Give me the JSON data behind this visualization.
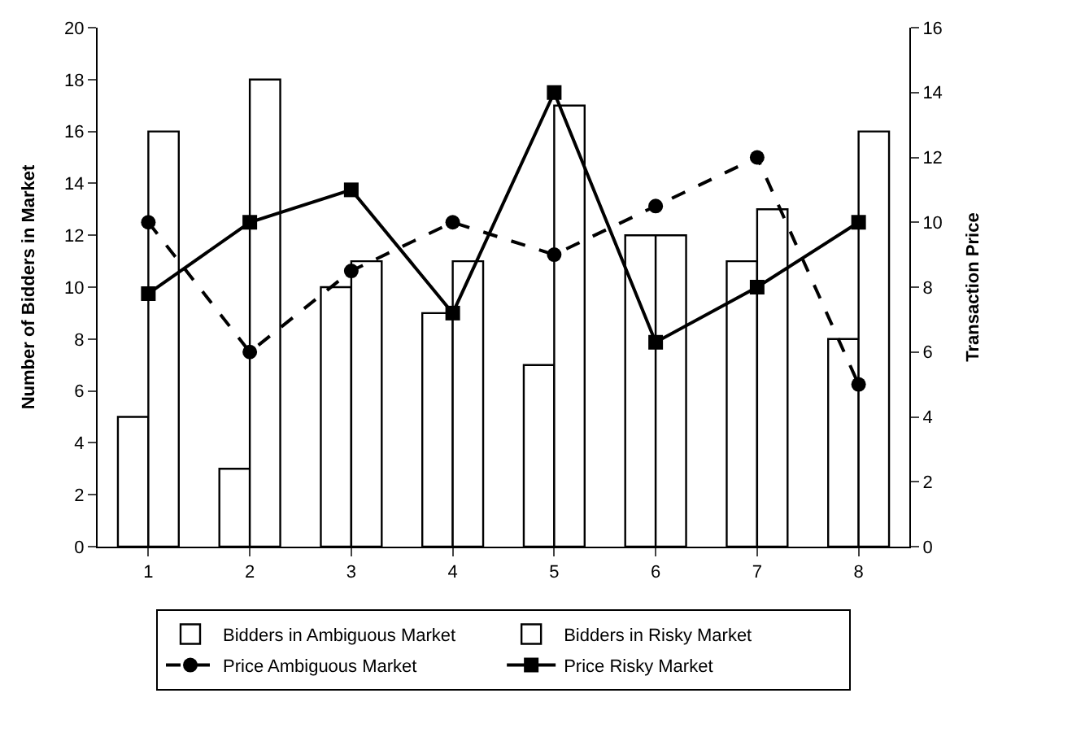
{
  "chart_data": {
    "type": "bar",
    "ylabel": "Number of Bidders in Market",
    "y2label": "Transaction Price",
    "categories": [
      "1",
      "2",
      "3",
      "4",
      "5",
      "6",
      "7",
      "8"
    ],
    "ylim": [
      0,
      20
    ],
    "yticks": [
      0,
      2,
      4,
      6,
      8,
      10,
      12,
      14,
      16,
      18,
      20
    ],
    "y2lim": [
      0,
      16
    ],
    "y2ticks": [
      0,
      2,
      4,
      6,
      8,
      10,
      12,
      14,
      16
    ],
    "legend": "bottom",
    "series": [
      {
        "name": "Bidders in Ambiguous Market",
        "color": "#ffffff",
        "values": [
          5,
          3,
          10,
          9,
          7,
          12,
          11,
          8
        ]
      },
      {
        "name": "Bidders in Risky Market",
        "color": "#ffffff",
        "values": [
          16,
          18,
          11,
          11,
          17,
          12,
          13,
          16
        ]
      },
      {
        "name": "Price Ambiguous Market",
        "type": "line",
        "axis": "y2",
        "color": "#000000",
        "marker": "circle",
        "line_style": "dashed",
        "values": [
          10,
          6,
          8.5,
          10,
          9,
          10.5,
          12,
          5
        ]
      },
      {
        "name": "Price Risky Market",
        "type": "line",
        "axis": "y2",
        "color": "#000000",
        "marker": "square",
        "line_style": "solid",
        "values": [
          7.8,
          10,
          11,
          7.2,
          14,
          6.3,
          8,
          10
        ]
      }
    ]
  }
}
